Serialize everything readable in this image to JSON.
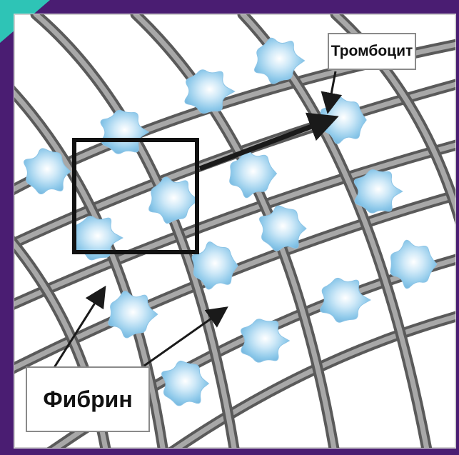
{
  "labels": {
    "platelet": "Тромбоцит",
    "fibrin": "Фибрин"
  },
  "colors": {
    "frame_background": "#4a1d72",
    "accent_corner": "#2ec4b6",
    "panel": "#ffffff",
    "fiber_dark": "#5a5a5a",
    "fiber_light": "#a8a8a8",
    "platelet": "#9fd3ef",
    "arrow": "#1a1a1a"
  }
}
